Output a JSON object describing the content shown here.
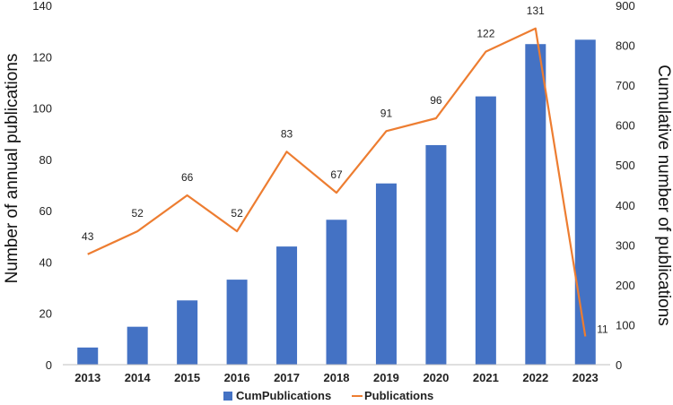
{
  "chart_data": {
    "type": "bar+line",
    "categories": [
      "2013",
      "2014",
      "2015",
      "2016",
      "2017",
      "2018",
      "2019",
      "2020",
      "2021",
      "2022",
      "2023"
    ],
    "series": [
      {
        "name": "CumPublications",
        "type": "bar",
        "axis": "right",
        "values": [
          43,
          95,
          161,
          213,
          296,
          363,
          454,
          550,
          672,
          803,
          814
        ],
        "color": "#4472C4"
      },
      {
        "name": "Publications",
        "type": "line",
        "axis": "left",
        "values": [
          43,
          52,
          66,
          52,
          83,
          67,
          91,
          96,
          122,
          131,
          11
        ],
        "color": "#ED7D31"
      }
    ],
    "data_labels": [
      "43",
      "52",
      "66",
      "52",
      "83",
      "67",
      "91",
      "96",
      "122",
      "131",
      "11"
    ],
    "ylabel_left": "Number of annual publications",
    "ylabel_right": "Cumulative number of publications",
    "ylim_left": [
      0,
      140
    ],
    "yticks_left": [
      "0",
      "20",
      "40",
      "60",
      "80",
      "100",
      "120",
      "140"
    ],
    "ylim_right": [
      0,
      900
    ],
    "yticks_right": [
      "0",
      "100",
      "200",
      "300",
      "400",
      "500",
      "600",
      "700",
      "800",
      "900"
    ],
    "grid": false,
    "legend_position": "bottom"
  }
}
